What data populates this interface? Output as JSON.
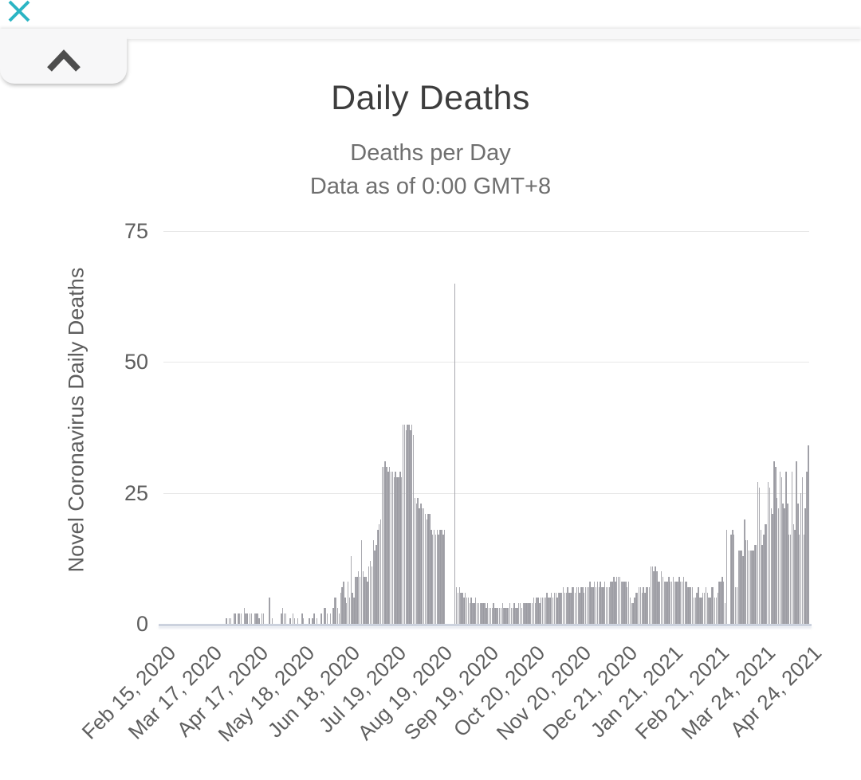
{
  "app": {
    "close_label": "close",
    "collapse_label": "collapse panel"
  },
  "colors": {
    "accent_teal": "#2ab5c4",
    "bar_gray": "#9b9ba2",
    "axis_line": "#ccd2de",
    "grid_line": "#e7e7e7",
    "title_text": "#3d3d3d",
    "subtitle_text": "#6f6f6f",
    "tick_text": "#5e5e5e",
    "panel_bg": "#f7f7f8",
    "chevron": "#4d4d4d"
  },
  "chart_data": {
    "type": "bar",
    "title": "Daily Deaths",
    "subtitle": [
      "Deaths per Day",
      "Data as of 0:00 GMT+8"
    ],
    "ylabel": "Novel Coronavirus Daily Deaths",
    "xlabel": "",
    "grid": true,
    "legend": "none",
    "x_start_date": "Feb 15, 2020",
    "x_end_date": "Apr 24, 2021",
    "x_tick_labels": [
      "Feb 15, 2020",
      "Mar 17, 2020",
      "Apr 17, 2020",
      "May 18, 2020",
      "Jun 18, 2020",
      "Jul 19, 2020",
      "Aug 19, 2020",
      "Sep 19, 2020",
      "Oct 20, 2020",
      "Nov 20, 2020",
      "Dec 21, 2020",
      "Jan 21, 2021",
      "Feb 21, 2021",
      "Mar 24, 2021",
      "Apr 24, 2021"
    ],
    "x_tick_interval_days": 31,
    "y_ticks": [
      0,
      25,
      50,
      75
    ],
    "ylim": [
      0,
      78
    ],
    "notable_points": {
      "first_wave_plateau": 30,
      "first_wave_peak": 38,
      "isolated_spike_late_aug_2020": 65,
      "final_bar_apr_24_2021": 34
    },
    "values": [
      0,
      0,
      0,
      0,
      0,
      0,
      0,
      0,
      0,
      0,
      0,
      0,
      0,
      0,
      0,
      0,
      0,
      0,
      0,
      0,
      0,
      0,
      0,
      0,
      0,
      0,
      0,
      0,
      0,
      0,
      0,
      0,
      0,
      0,
      0,
      0,
      0,
      0,
      0,
      0,
      0,
      0,
      1,
      0,
      1,
      1,
      0,
      2,
      2,
      0,
      2,
      2,
      2,
      0,
      3,
      2,
      2,
      0,
      2,
      2,
      0,
      2,
      2,
      2,
      1,
      0,
      2,
      2,
      0,
      0,
      0,
      5,
      0,
      1,
      0,
      0,
      0,
      0,
      0,
      2,
      3,
      2,
      2,
      0,
      0,
      1,
      0,
      2,
      1,
      0,
      1,
      0,
      0,
      2,
      1,
      0,
      0,
      0,
      1,
      0,
      1,
      2,
      0,
      1,
      0,
      0,
      2,
      0,
      3,
      3,
      2,
      0,
      2,
      0,
      3,
      5,
      5,
      3,
      2,
      6,
      7,
      8,
      5,
      4,
      8,
      5,
      13,
      6,
      5,
      9,
      9,
      10,
      9,
      16,
      10,
      9,
      9,
      8,
      11,
      12,
      11,
      16,
      14,
      15,
      18,
      19,
      20,
      30,
      30,
      31,
      30,
      29,
      30,
      29,
      29,
      28,
      29,
      28,
      28,
      29,
      28,
      38,
      38,
      37,
      38,
      38,
      37,
      38,
      36,
      24,
      23,
      24,
      22,
      23,
      22,
      22,
      21,
      20,
      21,
      21,
      18,
      17,
      18,
      17,
      18,
      17,
      18,
      18,
      17,
      18,
      0,
      0,
      0,
      0,
      0,
      0,
      65,
      7,
      6,
      7,
      6,
      6,
      5,
      6,
      5,
      5,
      4,
      5,
      4,
      4,
      5,
      4,
      4,
      4,
      4,
      4,
      4,
      3,
      4,
      3,
      3,
      3,
      4,
      3,
      3,
      3,
      3,
      3,
      4,
      3,
      3,
      3,
      3,
      4,
      3,
      3,
      4,
      3,
      3,
      4,
      4,
      3,
      4,
      4,
      4,
      4,
      4,
      4,
      4,
      5,
      4,
      5,
      5,
      4,
      5,
      5,
      5,
      5,
      6,
      5,
      5,
      6,
      5,
      6,
      6,
      5,
      6,
      6,
      6,
      7,
      6,
      6,
      7,
      6,
      6,
      7,
      7,
      6,
      7,
      7,
      6,
      7,
      7,
      6,
      7,
      7,
      7,
      8,
      7,
      7,
      8,
      7,
      8,
      7,
      8,
      7,
      7,
      8,
      7,
      7,
      7,
      8,
      8,
      9,
      8,
      9,
      9,
      9,
      8,
      8,
      8,
      8,
      7,
      8,
      5,
      4,
      4,
      5,
      6,
      6,
      7,
      7,
      6,
      7,
      6,
      7,
      7,
      7,
      11,
      11,
      10,
      11,
      10,
      8,
      8,
      10,
      9,
      8,
      8,
      8,
      9,
      8,
      8,
      9,
      8,
      8,
      8,
      9,
      8,
      8,
      9,
      8,
      8,
      7,
      7,
      7,
      7,
      5,
      5,
      6,
      7,
      5,
      5,
      6,
      6,
      7,
      6,
      5,
      5,
      7,
      7,
      5,
      5,
      6,
      8,
      8,
      9,
      8,
      4,
      18,
      0,
      0,
      17,
      18,
      17,
      7,
      7,
      14,
      14,
      14,
      13,
      20,
      16,
      16,
      14,
      14,
      14,
      14,
      15,
      15,
      27,
      26,
      18,
      15,
      17,
      19,
      19,
      27,
      26,
      22,
      21,
      31,
      30,
      24,
      22,
      29,
      28,
      23,
      22,
      29,
      23,
      17,
      17,
      29,
      19,
      18,
      31,
      23,
      17,
      25,
      28,
      17,
      22,
      29,
      34
    ]
  }
}
